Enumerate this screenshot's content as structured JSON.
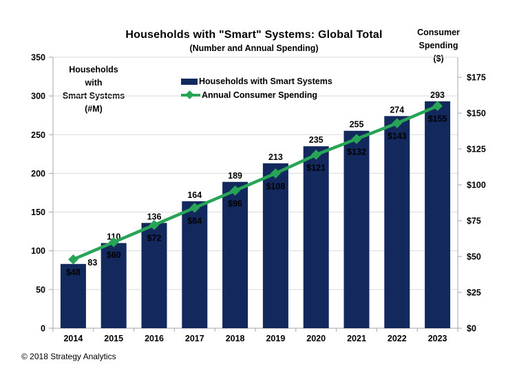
{
  "header": {
    "title": "Households with \"Smart\" Systems: Global Total",
    "subtitle": "(Number and Annual Spending)"
  },
  "axis_titles": {
    "left": "Households\nwith\nSmart Systems\n(#M)",
    "right": "Consumer\nSpending\n($)"
  },
  "legend": {
    "position": "top-center-inside",
    "items": [
      {
        "label": "Households with Smart Systems",
        "marker": "bar-swatch"
      },
      {
        "label": "Annual Consumer Spending",
        "marker": "line-diamond-swatch"
      }
    ]
  },
  "footer": {
    "copyright": "© 2018 Strategy Analytics"
  },
  "colors": {
    "bar": "#13285C",
    "line": "#27A455",
    "grid": "#D9D9D9",
    "axis": "#A6A6A6",
    "label_text": "#000000",
    "bar_inner_label_text": "#FFFFFF",
    "background": "#FFFFFF"
  },
  "chart_data": {
    "type": "bar",
    "subtype": "bar+line combo, dual axis",
    "title": "Households with \"Smart\" Systems: Global Total",
    "subtitle": "(Number and Annual Spending)",
    "grid": "horizontal",
    "categories": [
      "2014",
      "2015",
      "2016",
      "2017",
      "2018",
      "2019",
      "2020",
      "2021",
      "2022",
      "2023"
    ],
    "series": [
      {
        "name": "Households with Smart Systems",
        "chart_type": "bar",
        "axis": "left",
        "unit": "#M",
        "values": [
          83,
          110,
          136,
          164,
          189,
          213,
          235,
          255,
          274,
          293
        ],
        "data_labels": [
          "83",
          "110",
          "136",
          "164",
          "189",
          "213",
          "235",
          "255",
          "274",
          "293"
        ]
      },
      {
        "name": "Annual Consumer Spending",
        "chart_type": "line",
        "axis": "right",
        "unit": "$",
        "values": [
          48,
          60,
          72,
          84,
          96,
          108,
          121,
          132,
          143,
          155
        ],
        "data_labels": [
          "$48",
          "$60",
          "$72",
          "$84",
          "$96",
          "$108",
          "$121",
          "$132",
          "$143",
          "$155"
        ]
      }
    ],
    "left_axis": {
      "title": "Households with Smart Systems (#M)",
      "min": 0,
      "max": 350,
      "tick_interval": 50,
      "tick_labels": [
        "0",
        "50",
        "100",
        "150",
        "200",
        "250",
        "300",
        "350"
      ]
    },
    "right_axis": {
      "title": "Consumer Spending ($)",
      "min": 0,
      "scale_max": 189,
      "tick_interval": 25,
      "tick_labels": [
        "$0",
        "$25",
        "$50",
        "$75",
        "$100",
        "$125",
        "$150",
        "$175"
      ]
    }
  }
}
